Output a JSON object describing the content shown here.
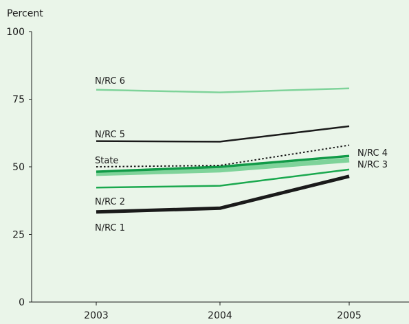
{
  "chart_data": {
    "type": "line",
    "ylabel": "Percent",
    "xlabel": "",
    "x": [
      "2003",
      "2004",
      "2005"
    ],
    "ylim": [
      0,
      100
    ],
    "yticks": [
      0,
      25,
      50,
      75,
      100
    ],
    "grid": false,
    "series": [
      {
        "name": "N/RC 6",
        "values": [
          78.5,
          77.5,
          79
        ],
        "color": "#7fd39a"
      },
      {
        "name": "N/RC 5",
        "values": [
          59.5,
          59.3,
          65
        ],
        "color": "#1a1a1a"
      },
      {
        "name": "State",
        "values": [
          50,
          50.5,
          58
        ],
        "color": "#1a1a1a"
      },
      {
        "name": "N/RC 4",
        "values": [
          48.2,
          50,
          54
        ],
        "color": "#109a47"
      },
      {
        "name": "N/RC 3",
        "values": [
          47.5,
          48.8,
          52.5
        ],
        "color": "#7fd39a"
      },
      {
        "name": "N/RC 2",
        "values": [
          42.3,
          43,
          49
        ],
        "color": "#1aa84e"
      },
      {
        "name": "N/RC 1",
        "values": [
          33.3,
          34.7,
          46.5
        ],
        "color": "#1a1a1a"
      }
    ]
  }
}
